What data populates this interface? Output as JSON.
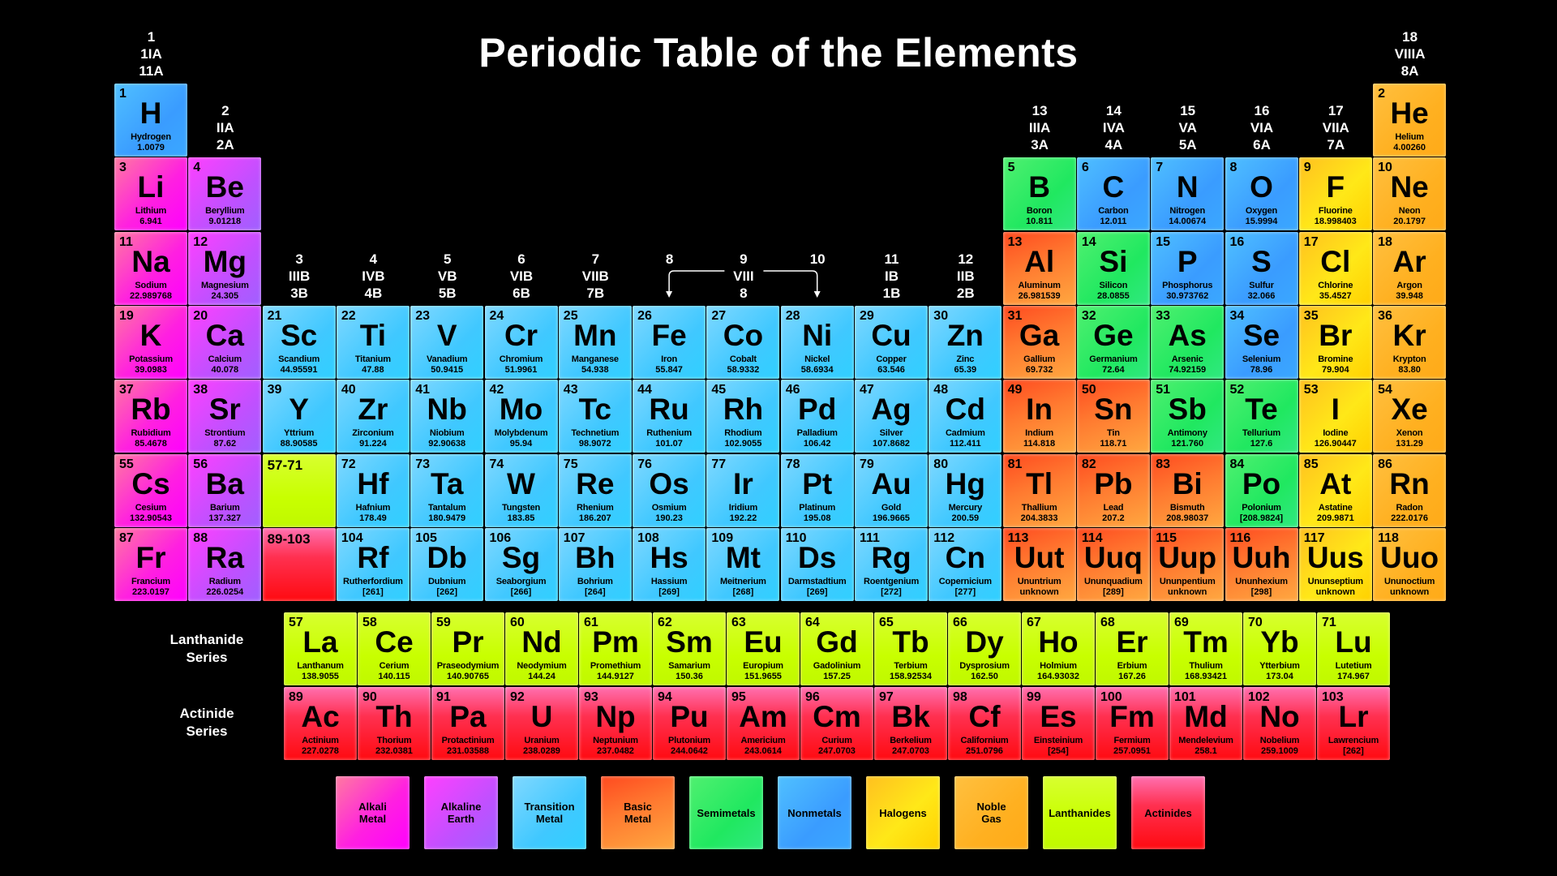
{
  "title": "Periodic Table of the Elements",
  "colors": {
    "alkali": "#ff00ff",
    "alkaline": "#a060ff",
    "transition": "#40c8ff",
    "basic": "#ff7a30",
    "semimetal": "#20e860",
    "nonmetal": "#3a9cff",
    "halogen": "#ffe818",
    "noble": "#ffb020",
    "lanthanide": "#c8ff00",
    "actinide": "#ff0a10",
    "background": "#000000"
  },
  "group_labels": [
    {
      "group": 1,
      "lines": [
        "1",
        "1IA",
        "11A"
      ]
    },
    {
      "group": 2,
      "lines": [
        "2",
        "IIA",
        "2A"
      ]
    },
    {
      "group": 3,
      "lines": [
        "3",
        "IIIB",
        "3B"
      ]
    },
    {
      "group": 4,
      "lines": [
        "4",
        "IVB",
        "4B"
      ]
    },
    {
      "group": 5,
      "lines": [
        "5",
        "VB",
        "5B"
      ]
    },
    {
      "group": 6,
      "lines": [
        "6",
        "VIB",
        "6B"
      ]
    },
    {
      "group": 7,
      "lines": [
        "7",
        "VIIB",
        "7B"
      ]
    },
    {
      "group": 8,
      "lines": [
        "8"
      ]
    },
    {
      "group": 9,
      "lines": [
        "9",
        "VIII",
        "8"
      ]
    },
    {
      "group": 10,
      "lines": [
        "10"
      ]
    },
    {
      "group": 11,
      "lines": [
        "11",
        "IB",
        "1B"
      ]
    },
    {
      "group": 12,
      "lines": [
        "12",
        "IIB",
        "2B"
      ]
    },
    {
      "group": 13,
      "lines": [
        "13",
        "IIIA",
        "3A"
      ]
    },
    {
      "group": 14,
      "lines": [
        "14",
        "IVA",
        "4A"
      ]
    },
    {
      "group": 15,
      "lines": [
        "15",
        "VA",
        "5A"
      ]
    },
    {
      "group": 16,
      "lines": [
        "16",
        "VIA",
        "6A"
      ]
    },
    {
      "group": 17,
      "lines": [
        "17",
        "VIIA",
        "7A"
      ]
    },
    {
      "group": 18,
      "lines": [
        "18",
        "VIIIA",
        "8A"
      ]
    }
  ],
  "placeholders": [
    {
      "label": "57-71",
      "cat": "lanthanide",
      "period": 6,
      "group": 3
    },
    {
      "label": "89-103",
      "cat": "actinide",
      "period": 7,
      "group": 3
    }
  ],
  "series_labels": {
    "lanthanide": [
      "Lanthanide",
      "Series"
    ],
    "actinide": [
      "Actinide",
      "Series"
    ]
  },
  "elements": [
    {
      "n": 1,
      "s": "H",
      "name": "Hydrogen",
      "w": "1.0079",
      "cat": "nonmetal",
      "p": 1,
      "g": 1
    },
    {
      "n": 2,
      "s": "He",
      "name": "Helium",
      "w": "4.00260",
      "cat": "noble",
      "p": 1,
      "g": 18
    },
    {
      "n": 3,
      "s": "Li",
      "name": "Lithium",
      "w": "6.941",
      "cat": "alkali",
      "p": 2,
      "g": 1
    },
    {
      "n": 4,
      "s": "Be",
      "name": "Beryllium",
      "w": "9.01218",
      "cat": "alkaline",
      "p": 2,
      "g": 2
    },
    {
      "n": 5,
      "s": "B",
      "name": "Boron",
      "w": "10.811",
      "cat": "semimetal",
      "p": 2,
      "g": 13
    },
    {
      "n": 6,
      "s": "C",
      "name": "Carbon",
      "w": "12.011",
      "cat": "nonmetal",
      "p": 2,
      "g": 14
    },
    {
      "n": 7,
      "s": "N",
      "name": "Nitrogen",
      "w": "14.00674",
      "cat": "nonmetal",
      "p": 2,
      "g": 15
    },
    {
      "n": 8,
      "s": "O",
      "name": "Oxygen",
      "w": "15.9994",
      "cat": "nonmetal",
      "p": 2,
      "g": 16
    },
    {
      "n": 9,
      "s": "F",
      "name": "Fluorine",
      "w": "18.998403",
      "cat": "halogen",
      "p": 2,
      "g": 17
    },
    {
      "n": 10,
      "s": "Ne",
      "name": "Neon",
      "w": "20.1797",
      "cat": "noble",
      "p": 2,
      "g": 18
    },
    {
      "n": 11,
      "s": "Na",
      "name": "Sodium",
      "w": "22.989768",
      "cat": "alkali",
      "p": 3,
      "g": 1
    },
    {
      "n": 12,
      "s": "Mg",
      "name": "Magnesium",
      "w": "24.305",
      "cat": "alkaline",
      "p": 3,
      "g": 2
    },
    {
      "n": 13,
      "s": "Al",
      "name": "Aluminum",
      "w": "26.981539",
      "cat": "basic",
      "p": 3,
      "g": 13
    },
    {
      "n": 14,
      "s": "Si",
      "name": "Silicon",
      "w": "28.0855",
      "cat": "semimetal",
      "p": 3,
      "g": 14
    },
    {
      "n": 15,
      "s": "P",
      "name": "Phosphorus",
      "w": "30.973762",
      "cat": "nonmetal",
      "p": 3,
      "g": 15
    },
    {
      "n": 16,
      "s": "S",
      "name": "Sulfur",
      "w": "32.066",
      "cat": "nonmetal",
      "p": 3,
      "g": 16
    },
    {
      "n": 17,
      "s": "Cl",
      "name": "Chlorine",
      "w": "35.4527",
      "cat": "halogen",
      "p": 3,
      "g": 17
    },
    {
      "n": 18,
      "s": "Ar",
      "name": "Argon",
      "w": "39.948",
      "cat": "noble",
      "p": 3,
      "g": 18
    },
    {
      "n": 19,
      "s": "K",
      "name": "Potassium",
      "w": "39.0983",
      "cat": "alkali",
      "p": 4,
      "g": 1
    },
    {
      "n": 20,
      "s": "Ca",
      "name": "Calcium",
      "w": "40.078",
      "cat": "alkaline",
      "p": 4,
      "g": 2
    },
    {
      "n": 21,
      "s": "Sc",
      "name": "Scandium",
      "w": "44.95591",
      "cat": "transition",
      "p": 4,
      "g": 3
    },
    {
      "n": 22,
      "s": "Ti",
      "name": "Titanium",
      "w": "47.88",
      "cat": "transition",
      "p": 4,
      "g": 4
    },
    {
      "n": 23,
      "s": "V",
      "name": "Vanadium",
      "w": "50.9415",
      "cat": "transition",
      "p": 4,
      "g": 5
    },
    {
      "n": 24,
      "s": "Cr",
      "name": "Chromium",
      "w": "51.9961",
      "cat": "transition",
      "p": 4,
      "g": 6
    },
    {
      "n": 25,
      "s": "Mn",
      "name": "Manganese",
      "w": "54.938",
      "cat": "transition",
      "p": 4,
      "g": 7
    },
    {
      "n": 26,
      "s": "Fe",
      "name": "Iron",
      "w": "55.847",
      "cat": "transition",
      "p": 4,
      "g": 8
    },
    {
      "n": 27,
      "s": "Co",
      "name": "Cobalt",
      "w": "58.9332",
      "cat": "transition",
      "p": 4,
      "g": 9
    },
    {
      "n": 28,
      "s": "Ni",
      "name": "Nickel",
      "w": "58.6934",
      "cat": "transition",
      "p": 4,
      "g": 10
    },
    {
      "n": 29,
      "s": "Cu",
      "name": "Copper",
      "w": "63.546",
      "cat": "transition",
      "p": 4,
      "g": 11
    },
    {
      "n": 30,
      "s": "Zn",
      "name": "Zinc",
      "w": "65.39",
      "cat": "transition",
      "p": 4,
      "g": 12
    },
    {
      "n": 31,
      "s": "Ga",
      "name": "Gallium",
      "w": "69.732",
      "cat": "basic",
      "p": 4,
      "g": 13
    },
    {
      "n": 32,
      "s": "Ge",
      "name": "Germanium",
      "w": "72.64",
      "cat": "semimetal",
      "p": 4,
      "g": 14
    },
    {
      "n": 33,
      "s": "As",
      "name": "Arsenic",
      "w": "74.92159",
      "cat": "semimetal",
      "p": 4,
      "g": 15
    },
    {
      "n": 34,
      "s": "Se",
      "name": "Selenium",
      "w": "78.96",
      "cat": "nonmetal",
      "p": 4,
      "g": 16
    },
    {
      "n": 35,
      "s": "Br",
      "name": "Bromine",
      "w": "79.904",
      "cat": "halogen",
      "p": 4,
      "g": 17
    },
    {
      "n": 36,
      "s": "Kr",
      "name": "Krypton",
      "w": "83.80",
      "cat": "noble",
      "p": 4,
      "g": 18
    },
    {
      "n": 37,
      "s": "Rb",
      "name": "Rubidium",
      "w": "85.4678",
      "cat": "alkali",
      "p": 5,
      "g": 1
    },
    {
      "n": 38,
      "s": "Sr",
      "name": "Strontium",
      "w": "87.62",
      "cat": "alkaline",
      "p": 5,
      "g": 2
    },
    {
      "n": 39,
      "s": "Y",
      "name": "Yttrium",
      "w": "88.90585",
      "cat": "transition",
      "p": 5,
      "g": 3
    },
    {
      "n": 40,
      "s": "Zr",
      "name": "Zirconium",
      "w": "91.224",
      "cat": "transition",
      "p": 5,
      "g": 4
    },
    {
      "n": 41,
      "s": "Nb",
      "name": "Niobium",
      "w": "92.90638",
      "cat": "transition",
      "p": 5,
      "g": 5
    },
    {
      "n": 42,
      "s": "Mo",
      "name": "Molybdenum",
      "w": "95.94",
      "cat": "transition",
      "p": 5,
      "g": 6
    },
    {
      "n": 43,
      "s": "Tc",
      "name": "Technetium",
      "w": "98.9072",
      "cat": "transition",
      "p": 5,
      "g": 7
    },
    {
      "n": 44,
      "s": "Ru",
      "name": "Ruthenium",
      "w": "101.07",
      "cat": "transition",
      "p": 5,
      "g": 8
    },
    {
      "n": 45,
      "s": "Rh",
      "name": "Rhodium",
      "w": "102.9055",
      "cat": "transition",
      "p": 5,
      "g": 9
    },
    {
      "n": 46,
      "s": "Pd",
      "name": "Palladium",
      "w": "106.42",
      "cat": "transition",
      "p": 5,
      "g": 10
    },
    {
      "n": 47,
      "s": "Ag",
      "name": "Silver",
      "w": "107.8682",
      "cat": "transition",
      "p": 5,
      "g": 11
    },
    {
      "n": 48,
      "s": "Cd",
      "name": "Cadmium",
      "w": "112.411",
      "cat": "transition",
      "p": 5,
      "g": 12
    },
    {
      "n": 49,
      "s": "In",
      "name": "Indium",
      "w": "114.818",
      "cat": "basic",
      "p": 5,
      "g": 13
    },
    {
      "n": 50,
      "s": "Sn",
      "name": "Tin",
      "w": "118.71",
      "cat": "basic",
      "p": 5,
      "g": 14
    },
    {
      "n": 51,
      "s": "Sb",
      "name": "Antimony",
      "w": "121.760",
      "cat": "semimetal",
      "p": 5,
      "g": 15
    },
    {
      "n": 52,
      "s": "Te",
      "name": "Tellurium",
      "w": "127.6",
      "cat": "semimetal",
      "p": 5,
      "g": 16
    },
    {
      "n": 53,
      "s": "I",
      "name": "Iodine",
      "w": "126.90447",
      "cat": "halogen",
      "p": 5,
      "g": 17
    },
    {
      "n": 54,
      "s": "Xe",
      "name": "Xenon",
      "w": "131.29",
      "cat": "noble",
      "p": 5,
      "g": 18
    },
    {
      "n": 55,
      "s": "Cs",
      "name": "Cesium",
      "w": "132.90543",
      "cat": "alkali",
      "p": 6,
      "g": 1
    },
    {
      "n": 56,
      "s": "Ba",
      "name": "Barium",
      "w": "137.327",
      "cat": "alkaline",
      "p": 6,
      "g": 2
    },
    {
      "n": 72,
      "s": "Hf",
      "name": "Hafnium",
      "w": "178.49",
      "cat": "transition",
      "p": 6,
      "g": 4
    },
    {
      "n": 73,
      "s": "Ta",
      "name": "Tantalum",
      "w": "180.9479",
      "cat": "transition",
      "p": 6,
      "g": 5
    },
    {
      "n": 74,
      "s": "W",
      "name": "Tungsten",
      "w": "183.85",
      "cat": "transition",
      "p": 6,
      "g": 6
    },
    {
      "n": 75,
      "s": "Re",
      "name": "Rhenium",
      "w": "186.207",
      "cat": "transition",
      "p": 6,
      "g": 7
    },
    {
      "n": 76,
      "s": "Os",
      "name": "Osmium",
      "w": "190.23",
      "cat": "transition",
      "p": 6,
      "g": 8
    },
    {
      "n": 77,
      "s": "Ir",
      "name": "Iridium",
      "w": "192.22",
      "cat": "transition",
      "p": 6,
      "g": 9
    },
    {
      "n": 78,
      "s": "Pt",
      "name": "Platinum",
      "w": "195.08",
      "cat": "transition",
      "p": 6,
      "g": 10
    },
    {
      "n": 79,
      "s": "Au",
      "name": "Gold",
      "w": "196.9665",
      "cat": "transition",
      "p": 6,
      "g": 11
    },
    {
      "n": 80,
      "s": "Hg",
      "name": "Mercury",
      "w": "200.59",
      "cat": "transition",
      "p": 6,
      "g": 12
    },
    {
      "n": 81,
      "s": "Tl",
      "name": "Thallium",
      "w": "204.3833",
      "cat": "basic",
      "p": 6,
      "g": 13
    },
    {
      "n": 82,
      "s": "Pb",
      "name": "Lead",
      "w": "207.2",
      "cat": "basic",
      "p": 6,
      "g": 14
    },
    {
      "n": 83,
      "s": "Bi",
      "name": "Bismuth",
      "w": "208.98037",
      "cat": "basic",
      "p": 6,
      "g": 15
    },
    {
      "n": 84,
      "s": "Po",
      "name": "Polonium",
      "w": "[208.9824]",
      "cat": "semimetal",
      "p": 6,
      "g": 16
    },
    {
      "n": 85,
      "s": "At",
      "name": "Astatine",
      "w": "209.9871",
      "cat": "halogen",
      "p": 6,
      "g": 17
    },
    {
      "n": 86,
      "s": "Rn",
      "name": "Radon",
      "w": "222.0176",
      "cat": "noble",
      "p": 6,
      "g": 18
    },
    {
      "n": 87,
      "s": "Fr",
      "name": "Francium",
      "w": "223.0197",
      "cat": "alkali",
      "p": 7,
      "g": 1
    },
    {
      "n": 88,
      "s": "Ra",
      "name": "Radium",
      "w": "226.0254",
      "cat": "alkaline",
      "p": 7,
      "g": 2
    },
    {
      "n": 104,
      "s": "Rf",
      "name": "Rutherfordium",
      "w": "[261]",
      "cat": "transition",
      "p": 7,
      "g": 4
    },
    {
      "n": 105,
      "s": "Db",
      "name": "Dubnium",
      "w": "[262]",
      "cat": "transition",
      "p": 7,
      "g": 5
    },
    {
      "n": 106,
      "s": "Sg",
      "name": "Seaborgium",
      "w": "[266]",
      "cat": "transition",
      "p": 7,
      "g": 6
    },
    {
      "n": 107,
      "s": "Bh",
      "name": "Bohrium",
      "w": "[264]",
      "cat": "transition",
      "p": 7,
      "g": 7
    },
    {
      "n": 108,
      "s": "Hs",
      "name": "Hassium",
      "w": "[269]",
      "cat": "transition",
      "p": 7,
      "g": 8
    },
    {
      "n": 109,
      "s": "Mt",
      "name": "Meitnerium",
      "w": "[268]",
      "cat": "transition",
      "p": 7,
      "g": 9
    },
    {
      "n": 110,
      "s": "Ds",
      "name": "Darmstadtium",
      "w": "[269]",
      "cat": "transition",
      "p": 7,
      "g": 10
    },
    {
      "n": 111,
      "s": "Rg",
      "name": "Roentgenium",
      "w": "[272]",
      "cat": "transition",
      "p": 7,
      "g": 11
    },
    {
      "n": 112,
      "s": "Cn",
      "name": "Copernicium",
      "w": "[277]",
      "cat": "transition",
      "p": 7,
      "g": 12
    },
    {
      "n": 113,
      "s": "Uut",
      "name": "Ununtrium",
      "w": "unknown",
      "cat": "basic",
      "p": 7,
      "g": 13
    },
    {
      "n": 114,
      "s": "Uuq",
      "name": "Ununquadium",
      "w": "[289]",
      "cat": "basic",
      "p": 7,
      "g": 14
    },
    {
      "n": 115,
      "s": "Uup",
      "name": "Ununpentium",
      "w": "unknown",
      "cat": "basic",
      "p": 7,
      "g": 15
    },
    {
      "n": 116,
      "s": "Uuh",
      "name": "Ununhexium",
      "w": "[298]",
      "cat": "basic",
      "p": 7,
      "g": 16
    },
    {
      "n": 117,
      "s": "Uus",
      "name": "Ununseptium",
      "w": "unknown",
      "cat": "halogen",
      "p": 7,
      "g": 17
    },
    {
      "n": 118,
      "s": "Uuo",
      "name": "Ununoctium",
      "w": "unknown",
      "cat": "noble",
      "p": 7,
      "g": 18
    }
  ],
  "lanthanides": [
    {
      "n": 57,
      "s": "La",
      "name": "Lanthanum",
      "w": "138.9055"
    },
    {
      "n": 58,
      "s": "Ce",
      "name": "Cerium",
      "w": "140.115"
    },
    {
      "n": 59,
      "s": "Pr",
      "name": "Praseodymium",
      "w": "140.90765"
    },
    {
      "n": 60,
      "s": "Nd",
      "name": "Neodymium",
      "w": "144.24"
    },
    {
      "n": 61,
      "s": "Pm",
      "name": "Promethium",
      "w": "144.9127"
    },
    {
      "n": 62,
      "s": "Sm",
      "name": "Samarium",
      "w": "150.36"
    },
    {
      "n": 63,
      "s": "Eu",
      "name": "Europium",
      "w": "151.9655"
    },
    {
      "n": 64,
      "s": "Gd",
      "name": "Gadolinium",
      "w": "157.25"
    },
    {
      "n": 65,
      "s": "Tb",
      "name": "Terbium",
      "w": "158.92534"
    },
    {
      "n": 66,
      "s": "Dy",
      "name": "Dysprosium",
      "w": "162.50"
    },
    {
      "n": 67,
      "s": "Ho",
      "name": "Holmium",
      "w": "164.93032"
    },
    {
      "n": 68,
      "s": "Er",
      "name": "Erbium",
      "w": "167.26"
    },
    {
      "n": 69,
      "s": "Tm",
      "name": "Thulium",
      "w": "168.93421"
    },
    {
      "n": 70,
      "s": "Yb",
      "name": "Ytterbium",
      "w": "173.04"
    },
    {
      "n": 71,
      "s": "Lu",
      "name": "Lutetium",
      "w": "174.967"
    }
  ],
  "actinides": [
    {
      "n": 89,
      "s": "Ac",
      "name": "Actinium",
      "w": "227.0278"
    },
    {
      "n": 90,
      "s": "Th",
      "name": "Thorium",
      "w": "232.0381"
    },
    {
      "n": 91,
      "s": "Pa",
      "name": "Protactinium",
      "w": "231.03588"
    },
    {
      "n": 92,
      "s": "U",
      "name": "Uranium",
      "w": "238.0289"
    },
    {
      "n": 93,
      "s": "Np",
      "name": "Neptunium",
      "w": "237.0482"
    },
    {
      "n": 94,
      "s": "Pu",
      "name": "Plutonium",
      "w": "244.0642"
    },
    {
      "n": 95,
      "s": "Am",
      "name": "Americium",
      "w": "243.0614"
    },
    {
      "n": 96,
      "s": "Cm",
      "name": "Curium",
      "w": "247.0703"
    },
    {
      "n": 97,
      "s": "Bk",
      "name": "Berkelium",
      "w": "247.0703"
    },
    {
      "n": 98,
      "s": "Cf",
      "name": "Californium",
      "w": "251.0796"
    },
    {
      "n": 99,
      "s": "Es",
      "name": "Einsteinium",
      "w": "[254]"
    },
    {
      "n": 100,
      "s": "Fm",
      "name": "Fermium",
      "w": "257.0951"
    },
    {
      "n": 101,
      "s": "Md",
      "name": "Mendelevium",
      "w": "258.1"
    },
    {
      "n": 102,
      "s": "No",
      "name": "Nobelium",
      "w": "259.1009"
    },
    {
      "n": 103,
      "s": "Lr",
      "name": "Lawrencium",
      "w": "[262]"
    }
  ],
  "legend": [
    {
      "cat": "alkali",
      "lines": [
        "Alkali",
        "Metal"
      ]
    },
    {
      "cat": "alkaline",
      "lines": [
        "Alkaline",
        "Earth"
      ]
    },
    {
      "cat": "transition",
      "lines": [
        "Transition",
        "Metal"
      ]
    },
    {
      "cat": "basic",
      "lines": [
        "Basic",
        "Metal"
      ]
    },
    {
      "cat": "semimetal",
      "lines": [
        "Semimetals"
      ]
    },
    {
      "cat": "nonmetal",
      "lines": [
        "Nonmetals"
      ]
    },
    {
      "cat": "halogen",
      "lines": [
        "Halogens"
      ]
    },
    {
      "cat": "noble",
      "lines": [
        "Noble",
        "Gas"
      ]
    },
    {
      "cat": "lanthanide",
      "lines": [
        "Lanthanides"
      ]
    },
    {
      "cat": "actinide",
      "lines": [
        "Actinides"
      ]
    }
  ]
}
